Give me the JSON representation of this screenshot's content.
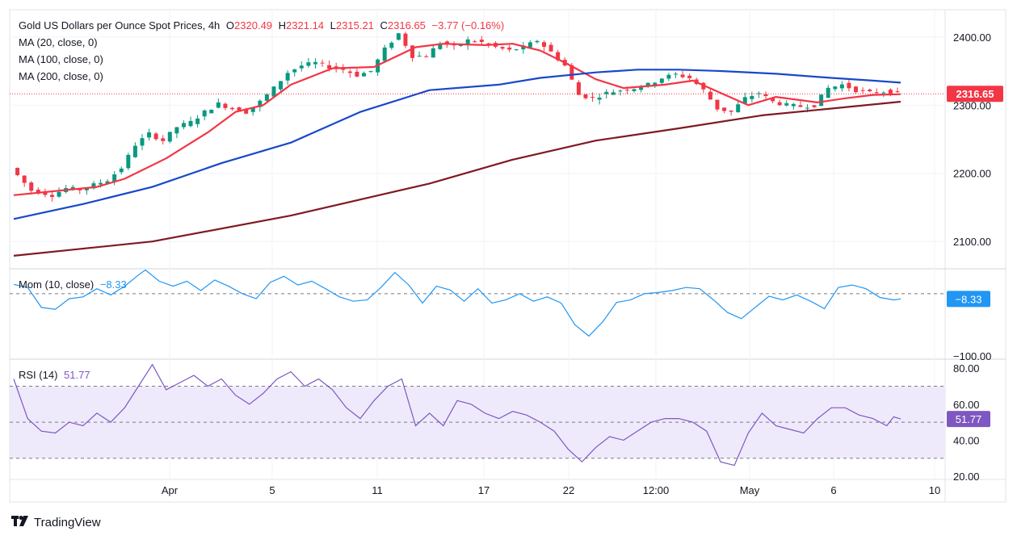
{
  "header": {
    "title": "Gold US Dollars per Ounce Spot Prices, 4h",
    "open_label": "O",
    "open": "2320.49",
    "high_label": "H",
    "high": "2321.14",
    "low_label": "L",
    "low": "2315.21",
    "close_label": "C",
    "close": "2316.65",
    "change": "−3.77 (−0.16%)",
    "ma20": "MA (20, close, 0)",
    "ma100": "MA (100, close, 0)",
    "ma200": "MA (200, close, 0)"
  },
  "mom_panel": {
    "label": "Mom (10, close)",
    "value": "−8.33",
    "badge": "−8.33",
    "low_tick": "−100.00"
  },
  "rsi_panel": {
    "label": "RSI (14)",
    "value": "51.77",
    "badge": "51.77"
  },
  "brand": {
    "name": "TradingView"
  },
  "colors": {
    "up": "#089981",
    "down": "#f23645",
    "ma20": "#f23645",
    "ma100": "#1848cc",
    "ma200": "#801922",
    "mom": "#2196f3",
    "rsi": "#7e57c2",
    "rsi_band": "#efeafb",
    "grid": "#f0f3fa",
    "text": "#131722",
    "badge_price": "#f23645",
    "badge_mom": "#2196f3",
    "badge_rsi": "#7e57c2"
  },
  "chart_data": [
    {
      "type": "candlestick",
      "title": "Gold US Dollars per Ounce Spot Prices, 4h",
      "ylim": [
        2060,
        2440
      ],
      "y_ticks": [
        "2400.00",
        "2300.00",
        "2200.00",
        "2100.00"
      ],
      "y_tick_values": [
        2400,
        2300,
        2200,
        2100
      ],
      "x_ticks": [
        "Apr",
        "5",
        "11",
        "17",
        "22",
        "12:00",
        "May",
        "6",
        "10"
      ],
      "last_price": "2316.65",
      "last_price_value": 2316.65,
      "price_path": [
        [
          0,
          2208
        ],
        [
          3,
          2175
        ],
        [
          6,
          2168
        ],
        [
          8,
          2178
        ],
        [
          10,
          2176
        ],
        [
          12,
          2183
        ],
        [
          14,
          2190
        ],
        [
          16,
          2208
        ],
        [
          18,
          2242
        ],
        [
          20,
          2258
        ],
        [
          22,
          2248
        ],
        [
          24,
          2268
        ],
        [
          26,
          2275
        ],
        [
          28,
          2290
        ],
        [
          30,
          2302
        ],
        [
          32,
          2295
        ],
        [
          34,
          2290
        ],
        [
          36,
          2305
        ],
        [
          38,
          2325
        ],
        [
          40,
          2348
        ],
        [
          42,
          2358
        ],
        [
          44,
          2362
        ],
        [
          46,
          2356
        ],
        [
          48,
          2352
        ],
        [
          50,
          2344
        ],
        [
          52,
          2350
        ],
        [
          54,
          2382
        ],
        [
          56,
          2405
        ],
        [
          58,
          2372
        ],
        [
          60,
          2372
        ],
        [
          62,
          2392
        ],
        [
          64,
          2385
        ],
        [
          66,
          2395
        ],
        [
          68,
          2392
        ],
        [
          70,
          2385
        ],
        [
          72,
          2380
        ],
        [
          74,
          2385
        ],
        [
          76,
          2395
        ],
        [
          78,
          2378
        ],
        [
          80,
          2358
        ],
        [
          82,
          2315
        ],
        [
          84,
          2310
        ],
        [
          86,
          2318
        ],
        [
          88,
          2322
        ],
        [
          90,
          2325
        ],
        [
          92,
          2330
        ],
        [
          94,
          2340
        ],
        [
          96,
          2345
        ],
        [
          98,
          2340
        ],
        [
          100,
          2322
        ],
        [
          102,
          2295
        ],
        [
          104,
          2290
        ],
        [
          106,
          2310
        ],
        [
          108,
          2318
        ],
        [
          110,
          2305
        ],
        [
          112,
          2300
        ],
        [
          114,
          2298
        ],
        [
          116,
          2300
        ],
        [
          118,
          2325
        ],
        [
          120,
          2330
        ],
        [
          122,
          2322
        ],
        [
          124,
          2318
        ],
        [
          126,
          2320
        ],
        [
          128,
          2316.65
        ]
      ],
      "series": [
        {
          "name": "MA (20, close, 0)",
          "values": [
            [
              0,
              2168
            ],
            [
              12,
              2180
            ],
            [
              16,
              2192
            ],
            [
              22,
              2222
            ],
            [
              28,
              2260
            ],
            [
              32,
              2290
            ],
            [
              36,
              2300
            ],
            [
              40,
              2330
            ],
            [
              46,
              2354
            ],
            [
              52,
              2356
            ],
            [
              58,
              2385
            ],
            [
              62,
              2390
            ],
            [
              68,
              2388
            ],
            [
              72,
              2390
            ],
            [
              76,
              2380
            ],
            [
              80,
              2360
            ],
            [
              84,
              2338
            ],
            [
              88,
              2325
            ],
            [
              94,
              2330
            ],
            [
              98,
              2336
            ],
            [
              102,
              2318
            ],
            [
              106,
              2300
            ],
            [
              110,
              2312
            ],
            [
              116,
              2304
            ],
            [
              120,
              2310
            ],
            [
              124,
              2315
            ],
            [
              128,
              2316
            ]
          ]
        },
        {
          "name": "MA (100, close, 0)",
          "values": [
            [
              0,
              2133
            ],
            [
              10,
              2155
            ],
            [
              20,
              2180
            ],
            [
              30,
              2215
            ],
            [
              40,
              2245
            ],
            [
              50,
              2290
            ],
            [
              60,
              2322
            ],
            [
              70,
              2330
            ],
            [
              76,
              2340
            ],
            [
              84,
              2348
            ],
            [
              90,
              2352
            ],
            [
              96,
              2352
            ],
            [
              102,
              2350
            ],
            [
              110,
              2346
            ],
            [
              118,
              2340
            ],
            [
              124,
              2336
            ],
            [
              128,
              2333
            ]
          ]
        },
        {
          "name": "MA (200, close, 0)",
          "values": [
            [
              0,
              2079
            ],
            [
              20,
              2100
            ],
            [
              40,
              2138
            ],
            [
              60,
              2185
            ],
            [
              72,
              2220
            ],
            [
              84,
              2248
            ],
            [
              96,
              2266
            ],
            [
              108,
              2285
            ],
            [
              118,
              2295
            ],
            [
              128,
              2305
            ]
          ]
        }
      ]
    },
    {
      "type": "line",
      "title": "Mom (10, close)",
      "ylim": [
        -105,
        40
      ],
      "y_ticks": [
        "-100.00"
      ],
      "y_tick_values": [
        -100
      ],
      "last_value": -8.33,
      "series": [
        {
          "name": "Mom (10, close)",
          "values": [
            [
              0,
              15
            ],
            [
              2,
              10
            ],
            [
              4,
              -22
            ],
            [
              6,
              -25
            ],
            [
              8,
              -8
            ],
            [
              10,
              -5
            ],
            [
              12,
              8
            ],
            [
              14,
              -2
            ],
            [
              16,
              12
            ],
            [
              18,
              30
            ],
            [
              19,
              38
            ],
            [
              21,
              20
            ],
            [
              23,
              12
            ],
            [
              25,
              20
            ],
            [
              27,
              5
            ],
            [
              29,
              22
            ],
            [
              31,
              12
            ],
            [
              33,
              0
            ],
            [
              35,
              -8
            ],
            [
              37,
              18
            ],
            [
              39,
              28
            ],
            [
              41,
              14
            ],
            [
              43,
              20
            ],
            [
              45,
              8
            ],
            [
              47,
              -5
            ],
            [
              49,
              -12
            ],
            [
              51,
              -10
            ],
            [
              53,
              10
            ],
            [
              55,
              34
            ],
            [
              57,
              14
            ],
            [
              59,
              -15
            ],
            [
              61,
              12
            ],
            [
              63,
              6
            ],
            [
              65,
              -12
            ],
            [
              67,
              8
            ],
            [
              69,
              -15
            ],
            [
              71,
              -10
            ],
            [
              73,
              0
            ],
            [
              75,
              -12
            ],
            [
              77,
              -5
            ],
            [
              79,
              -15
            ],
            [
              81,
              -50
            ],
            [
              83,
              -68
            ],
            [
              85,
              -45
            ],
            [
              87,
              -14
            ],
            [
              89,
              -10
            ],
            [
              91,
              0
            ],
            [
              93,
              2
            ],
            [
              95,
              5
            ],
            [
              97,
              10
            ],
            [
              99,
              8
            ],
            [
              101,
              -10
            ],
            [
              103,
              -30
            ],
            [
              105,
              -40
            ],
            [
              107,
              -22
            ],
            [
              109,
              -4
            ],
            [
              111,
              -10
            ],
            [
              113,
              -2
            ],
            [
              115,
              -12
            ],
            [
              117,
              -24
            ],
            [
              119,
              10
            ],
            [
              121,
              14
            ],
            [
              123,
              8
            ],
            [
              125,
              -6
            ],
            [
              127,
              -10
            ],
            [
              128,
              -8.33
            ]
          ]
        }
      ]
    },
    {
      "type": "line",
      "title": "RSI (14)",
      "ylim": [
        20,
        85
      ],
      "y_ticks": [
        "80.00",
        "60.00",
        "40.00",
        "20.00"
      ],
      "y_tick_values": [
        80,
        60,
        40,
        20
      ],
      "bands": [
        30,
        50,
        70
      ],
      "last_value": 51.77,
      "series": [
        {
          "name": "RSI (14)",
          "values": [
            [
              0,
              74
            ],
            [
              2,
              52
            ],
            [
              4,
              45
            ],
            [
              6,
              44
            ],
            [
              8,
              50
            ],
            [
              10,
              48
            ],
            [
              12,
              55
            ],
            [
              14,
              50
            ],
            [
              16,
              58
            ],
            [
              18,
              70
            ],
            [
              20,
              82
            ],
            [
              22,
              68
            ],
            [
              24,
              72
            ],
            [
              26,
              76
            ],
            [
              28,
              70
            ],
            [
              30,
              74
            ],
            [
              32,
              65
            ],
            [
              34,
              60
            ],
            [
              36,
              66
            ],
            [
              38,
              74
            ],
            [
              40,
              78
            ],
            [
              42,
              70
            ],
            [
              44,
              74
            ],
            [
              46,
              68
            ],
            [
              48,
              58
            ],
            [
              50,
              52
            ],
            [
              52,
              62
            ],
            [
              54,
              70
            ],
            [
              56,
              74
            ],
            [
              58,
              48
            ],
            [
              60,
              55
            ],
            [
              62,
              48
            ],
            [
              64,
              62
            ],
            [
              66,
              60
            ],
            [
              68,
              55
            ],
            [
              70,
              52
            ],
            [
              72,
              56
            ],
            [
              74,
              54
            ],
            [
              76,
              50
            ],
            [
              78,
              45
            ],
            [
              80,
              35
            ],
            [
              82,
              28
            ],
            [
              84,
              36
            ],
            [
              86,
              42
            ],
            [
              88,
              40
            ],
            [
              90,
              45
            ],
            [
              92,
              50
            ],
            [
              94,
              52
            ],
            [
              96,
              52
            ],
            [
              98,
              50
            ],
            [
              100,
              45
            ],
            [
              102,
              28
            ],
            [
              104,
              26
            ],
            [
              106,
              44
            ],
            [
              108,
              55
            ],
            [
              110,
              48
            ],
            [
              112,
              46
            ],
            [
              114,
              44
            ],
            [
              116,
              52
            ],
            [
              118,
              58
            ],
            [
              120,
              58
            ],
            [
              122,
              54
            ],
            [
              124,
              52
            ],
            [
              126,
              48
            ],
            [
              127,
              53
            ],
            [
              128,
              51.77
            ]
          ]
        }
      ]
    }
  ]
}
